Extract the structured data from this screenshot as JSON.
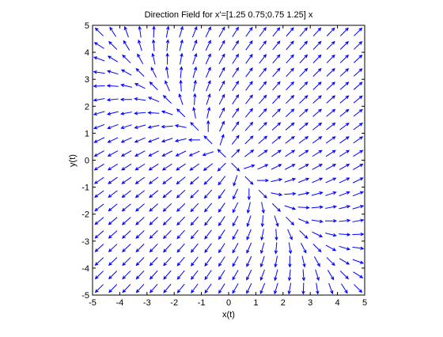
{
  "chart_data": {
    "type": "quiver",
    "title": "Direction Field for x'=[1.25 0.75;0.75 1.25] x",
    "x_label": "x(t)",
    "y_label": "y(t)",
    "matrix": [
      [
        1.25,
        0.75
      ],
      [
        0.75,
        1.25
      ]
    ],
    "x": [
      -4.75,
      -4.25,
      -3.75,
      -3.25,
      -2.75,
      -2.25,
      -1.75,
      -1.25,
      -0.75,
      -0.25,
      0.25,
      0.75,
      1.25,
      1.75,
      2.25,
      2.75,
      3.25,
      3.75,
      4.25,
      4.75
    ],
    "y": [
      -4.75,
      -4.25,
      -3.75,
      -3.25,
      -2.75,
      -2.25,
      -1.75,
      -1.25,
      -0.75,
      -0.25,
      0.25,
      0.75,
      1.25,
      1.75,
      2.25,
      2.75,
      3.25,
      3.75,
      4.25,
      4.75
    ],
    "color": "#0000ff",
    "xlim": [
      -5,
      5
    ],
    "ylim": [
      -5,
      5
    ],
    "xticks": [
      -5,
      -4,
      -3,
      -2,
      -1,
      0,
      1,
      2,
      3,
      4,
      5
    ],
    "yticks": [
      -5,
      -4,
      -3,
      -2,
      -1,
      0,
      1,
      2,
      3,
      4,
      5
    ]
  }
}
